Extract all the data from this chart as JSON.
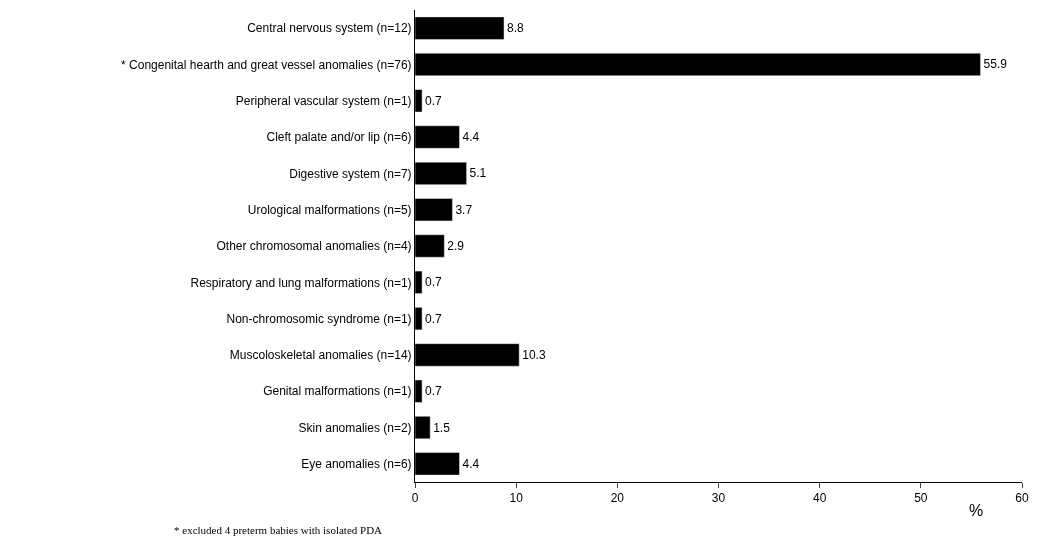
{
  "chart_data": {
    "type": "bar",
    "orientation": "horizontal",
    "xlabel": "%",
    "categories": [
      "Central nervous system (n=12)",
      "* Congenital hearth and great vessel anomalies (n=76)",
      "Peripheral vascular system (n=1)",
      "Cleft palate and/or lip (n=6)",
      "Digestive system (n=7)",
      "Urological malformations (n=5)",
      "Other chromosomal anomalies (n=4)",
      "Respiratory and lung malformations (n=1)",
      "Non-chromosomic syndrome (n=1)",
      "Muscoloskeletal anomalies (n=14)",
      "Genital malformations (n=1)",
      "Skin anomalies (n=2)",
      "Eye anomalies (n=6)"
    ],
    "values": [
      8.8,
      55.9,
      0.7,
      4.4,
      5.1,
      3.7,
      2.9,
      0.7,
      0.7,
      10.3,
      0.7,
      1.5,
      4.4
    ],
    "color": "#000000",
    "data_labels": true,
    "legend": false,
    "xlim": [
      0,
      60
    ],
    "xticks": [
      0,
      10,
      20,
      30,
      40,
      50,
      60
    ],
    "annotations": [
      "* excluded 4 preterm babies with isolated PDA"
    ]
  }
}
